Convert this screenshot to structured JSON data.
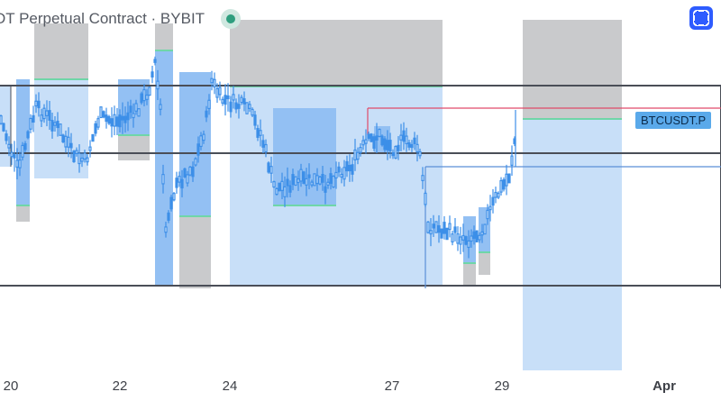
{
  "header": {
    "title": "DT Perpetual Contract · BYBIT"
  },
  "symbol_tag": "BTCUSDT.P",
  "colors": {
    "accent": "#2e5cff",
    "candle": "#3d8fe8",
    "zone_blue": "#c8dff8",
    "zone_blue_strong": "#93c0f3",
    "zone_gray": "#c9cacc",
    "level_green": "#6fd6a8",
    "level_red": "#e04a6a",
    "hline": "#4a4e57"
  },
  "icons": {
    "status": "status-dot-icon",
    "fullscreen": "fullscreen-icon"
  },
  "chart_data": {
    "type": "candlestick",
    "x_axis_labels": [
      "20",
      "22",
      "24",
      "27",
      "29",
      "Apr"
    ],
    "grid": false,
    "legend": "none"
  }
}
